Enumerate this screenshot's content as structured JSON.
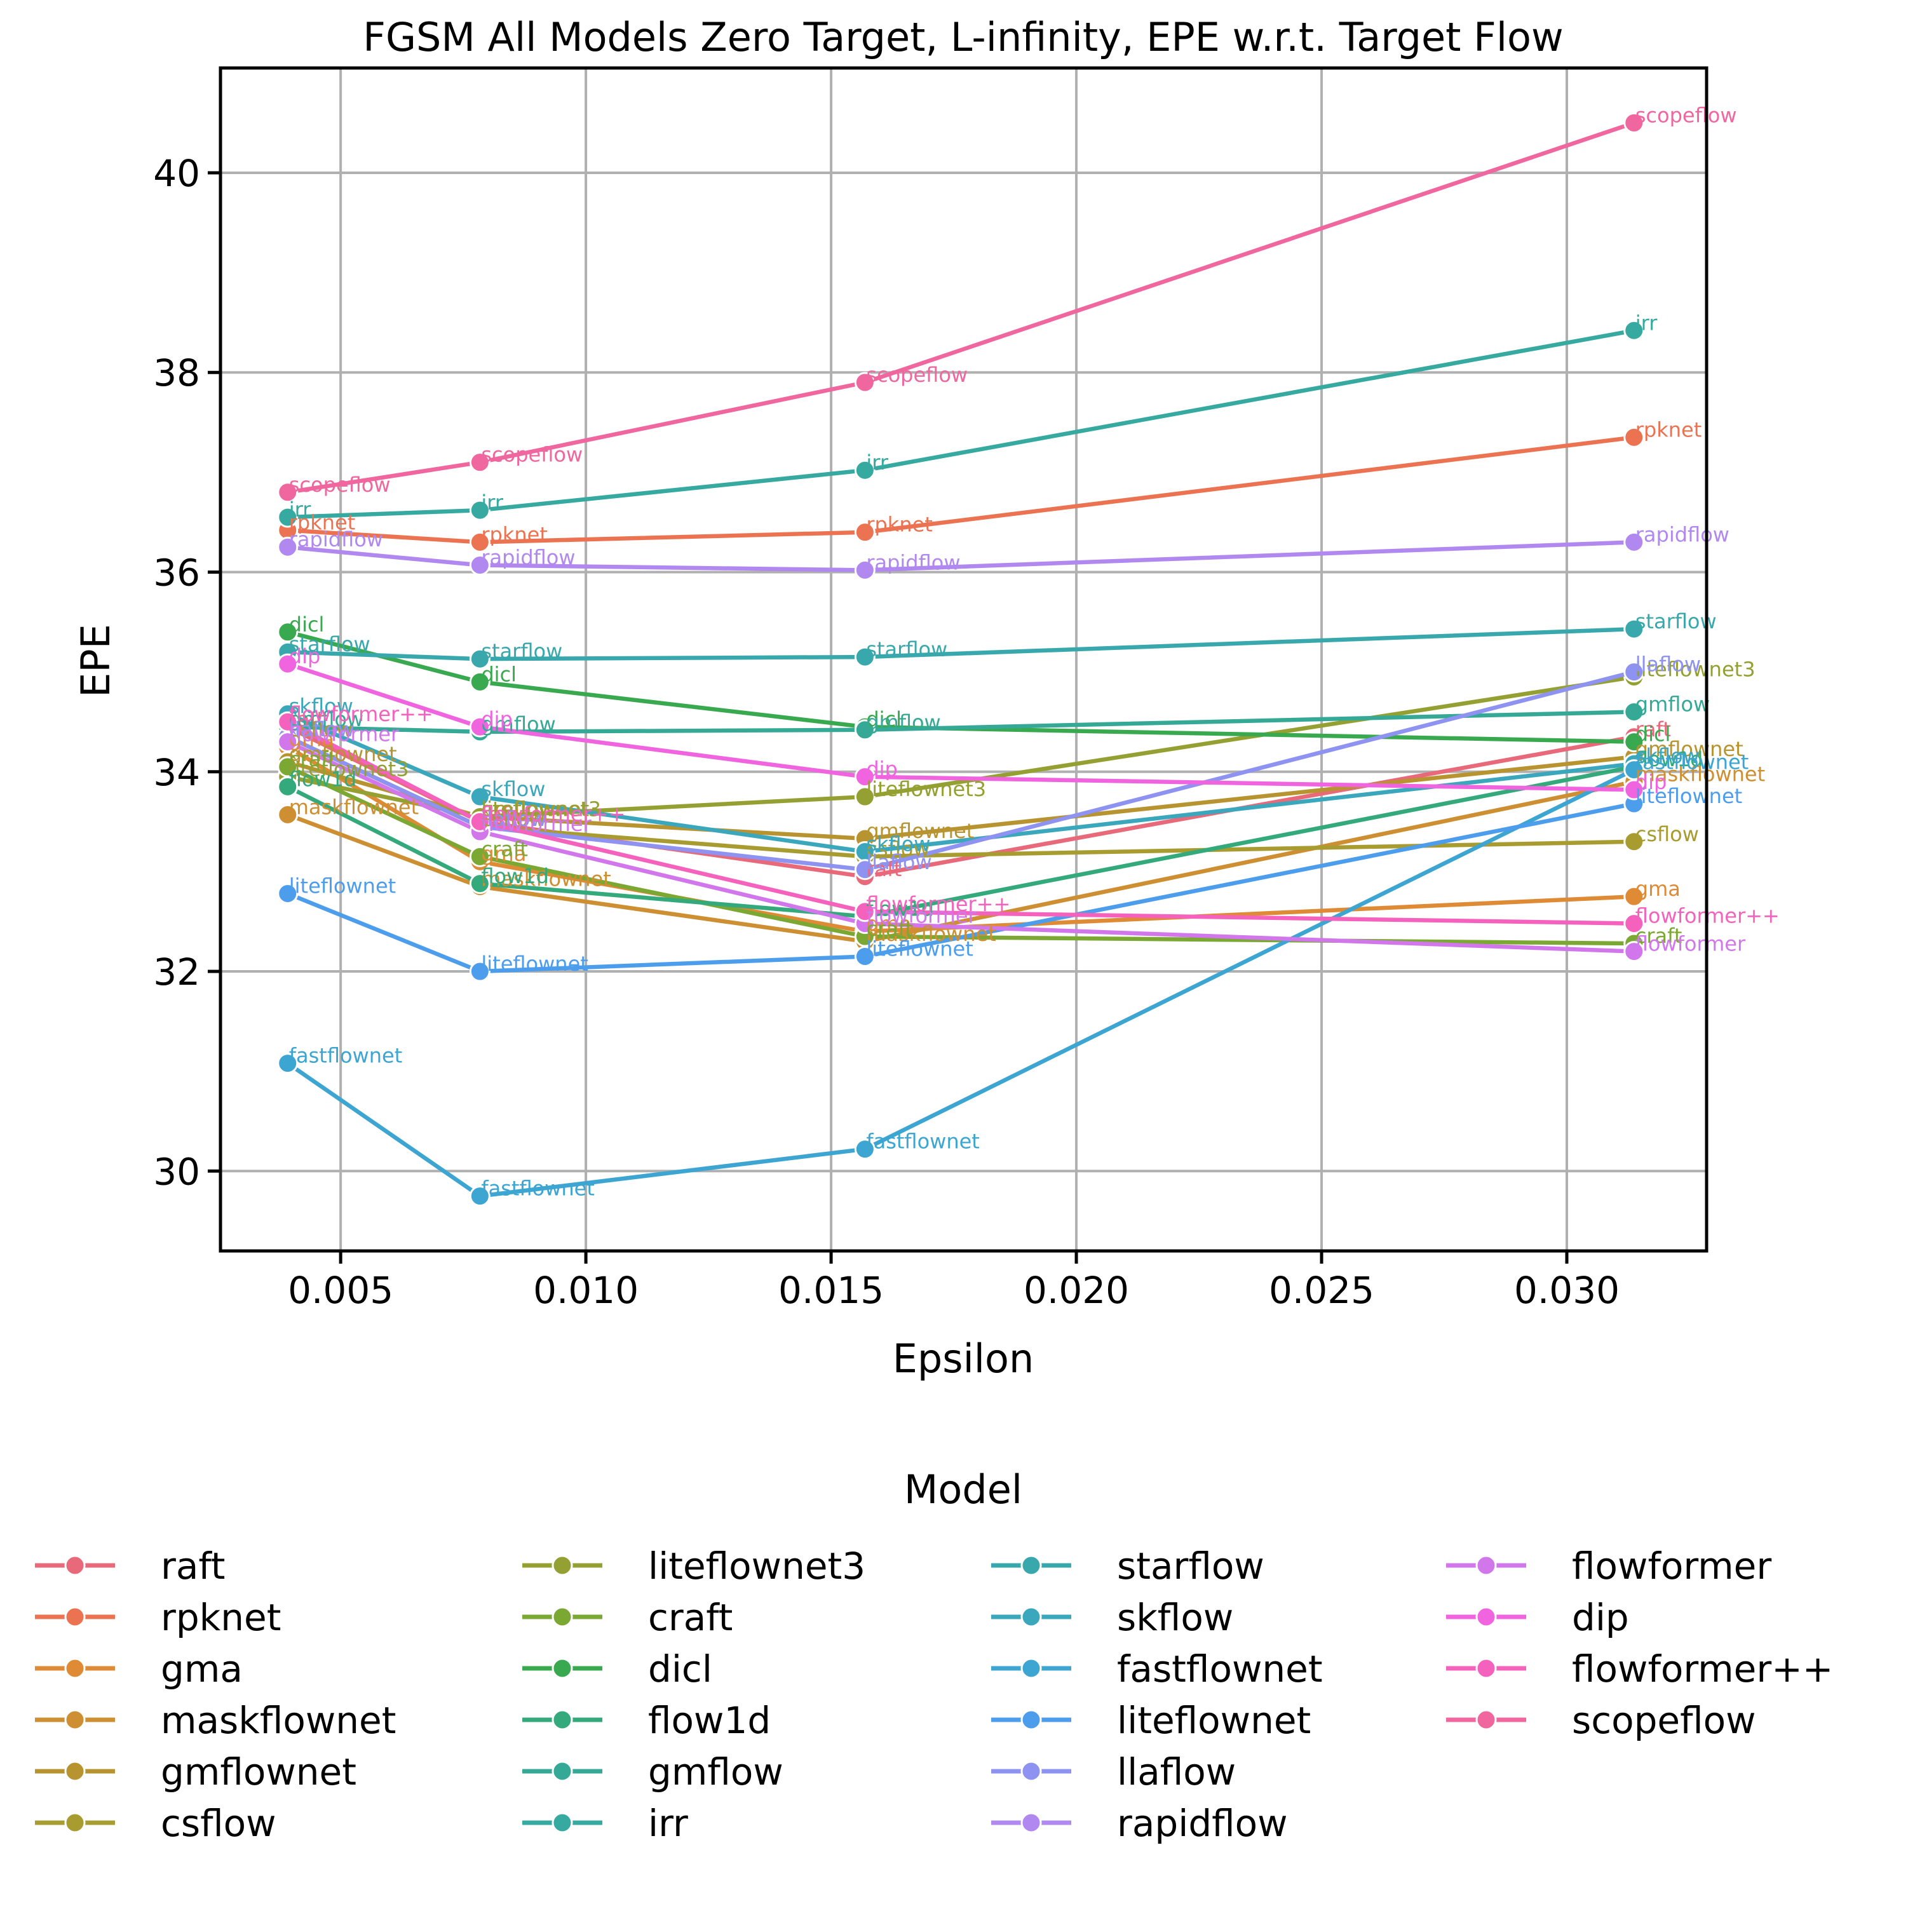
{
  "chart_data": {
    "type": "line",
    "title": "FGSM All Models Zero Target, L-infinity, EPE w.r.t. Target Flow",
    "xlabel": "Epsilon",
    "ylabel": "EPE",
    "xlim": [
      0.00255,
      0.03285
    ],
    "ylim": [
      29.2,
      41.05
    ],
    "x_ticks": [
      0.005,
      0.01,
      0.015,
      0.02,
      0.025,
      0.03
    ],
    "x_tick_labels": [
      "0.005",
      "0.010",
      "0.015",
      "0.020",
      "0.025",
      "0.030"
    ],
    "y_ticks": [
      30,
      32,
      34,
      36,
      38,
      40
    ],
    "y_tick_labels": [
      "30",
      "32",
      "34",
      "36",
      "38",
      "40"
    ],
    "grid": true,
    "legend": {
      "title": "Model",
      "placement": "bottom",
      "columns": 4
    },
    "x": [
      0.00392,
      0.00784,
      0.01569,
      0.03137
    ],
    "series": [
      {
        "name": "raft",
        "color": "#e8697a",
        "values": [
          34.45,
          33.5,
          32.95,
          34.35
        ]
      },
      {
        "name": "rpknet",
        "color": "#ec7352",
        "values": [
          36.42,
          36.3,
          36.4,
          37.35
        ]
      },
      {
        "name": "gma",
        "color": "#df8a34",
        "values": [
          34.25,
          33.1,
          32.4,
          32.75
        ]
      },
      {
        "name": "maskflownet",
        "color": "#cd8f32",
        "values": [
          33.57,
          32.85,
          32.3,
          33.9
        ]
      },
      {
        "name": "gmflownet",
        "color": "#b89431",
        "values": [
          34.1,
          33.55,
          33.33,
          34.15
        ]
      },
      {
        "name": "csflow",
        "color": "#a89c31",
        "values": [
          34.35,
          33.45,
          33.15,
          33.3
        ]
      },
      {
        "name": "liteflownet3",
        "color": "#95a032",
        "values": [
          33.95,
          33.55,
          33.75,
          34.95
        ]
      },
      {
        "name": "craft",
        "color": "#7aa833",
        "values": [
          34.05,
          33.15,
          32.35,
          32.28
        ]
      },
      {
        "name": "dicl",
        "color": "#39a94f",
        "values": [
          35.4,
          34.9,
          34.45,
          34.3
        ]
      },
      {
        "name": "flow1d",
        "color": "#34aa7c",
        "values": [
          33.85,
          32.88,
          32.55,
          34.05
        ]
      },
      {
        "name": "gmflow",
        "color": "#35a996",
        "values": [
          34.45,
          34.4,
          34.42,
          34.6
        ]
      },
      {
        "name": "irr",
        "color": "#36a9a0",
        "values": [
          36.55,
          36.62,
          37.02,
          38.42
        ]
      },
      {
        "name": "starflow",
        "color": "#38a8ad",
        "values": [
          35.2,
          35.13,
          35.15,
          35.43
        ]
      },
      {
        "name": "skflow",
        "color": "#3aa7bc",
        "values": [
          34.58,
          33.75,
          33.2,
          34.08
        ]
      },
      {
        "name": "fastflownet",
        "color": "#3da5d1",
        "values": [
          31.08,
          29.75,
          30.22,
          34.02
        ]
      },
      {
        "name": "liteflownet",
        "color": "#4d9ded",
        "values": [
          32.78,
          32.0,
          32.15,
          33.68
        ]
      },
      {
        "name": "llaflow",
        "color": "#8e92f0",
        "values": [
          34.35,
          33.45,
          33.02,
          35.0
        ]
      },
      {
        "name": "rapidflow",
        "color": "#b088ef",
        "values": [
          36.25,
          36.07,
          36.02,
          36.3
        ]
      },
      {
        "name": "flowformer",
        "color": "#d276ec",
        "values": [
          34.3,
          33.4,
          32.48,
          32.2
        ]
      },
      {
        "name": "dip",
        "color": "#f064df",
        "values": [
          35.08,
          34.45,
          33.95,
          33.82
        ]
      },
      {
        "name": "flowformer++",
        "color": "#f462be",
        "values": [
          34.5,
          33.5,
          32.6,
          32.48
        ]
      },
      {
        "name": "scopeflow",
        "color": "#f0669e",
        "values": [
          36.8,
          37.1,
          37.9,
          40.5
        ]
      }
    ]
  }
}
